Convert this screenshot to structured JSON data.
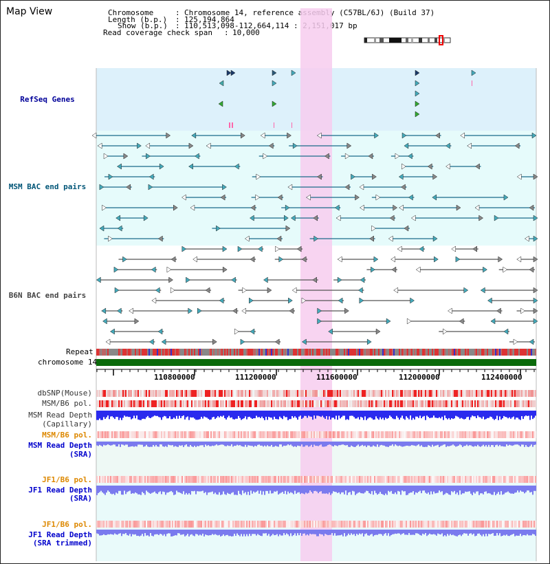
{
  "title": "Map View",
  "info": {
    "chromosome_key": "Chromosome",
    "chromosome_value": "Chromosome 14, reference assembly (C57BL/6J) (Build 37)",
    "length_key": "Length (b.p.)",
    "length_value": "125,194,864",
    "show_key": "Show (b.p.)",
    "show_value": "110,513,098-112,664,114 : 2,151,017 bp",
    "coverage_key": "Read coverage check span",
    "coverage_value": "10,000"
  },
  "tracks": {
    "refseq": "RefSeq Genes",
    "msm_bac": "MSM BAC end pairs",
    "b6n_bac": "B6N BAC end pairs",
    "repeat": "Repeat",
    "chromosome": "chromosome 14",
    "dbsnp": "dbSNP(Mouse)",
    "msm_b6_pol_1": "MSM/B6 pol.",
    "msm_read_depth_cap_1": "MSM Read Depth",
    "msm_read_depth_cap_2": "(Capillary)",
    "msm_b6_pol_2": "MSM/B6 pol.",
    "msm_read_depth_sra_1": "MSM Read Depth",
    "msm_read_depth_sra_2": "(SRA)",
    "jf1_b6_pol_1": "JF1/B6 pol.",
    "jf1_read_depth_sra_1": "JF1 Read Depth",
    "jf1_read_depth_sra_2": "(SRA)",
    "jf1_b6_pol_2": "JF1/B6 pol.",
    "jf1_read_depth_trim_1": "JF1 Read Depth",
    "jf1_read_depth_trim_2": "(SRA trimmed)"
  },
  "ruler": {
    "ticks": [
      "110800000",
      "111200000",
      "111600000",
      "112000000",
      "112400000"
    ]
  },
  "colors": {
    "refseq_label": "#000099",
    "msm_label": "#005577",
    "b6n_label": "#444444",
    "msm_pol_label": "#dd8800",
    "msm_depth_label": "#0000cc",
    "highlight": "#f7ccef",
    "refseq_band": "#ddf1fb",
    "msm_band": "#e6fbfb",
    "lower_band": "#eef9f5"
  }
}
